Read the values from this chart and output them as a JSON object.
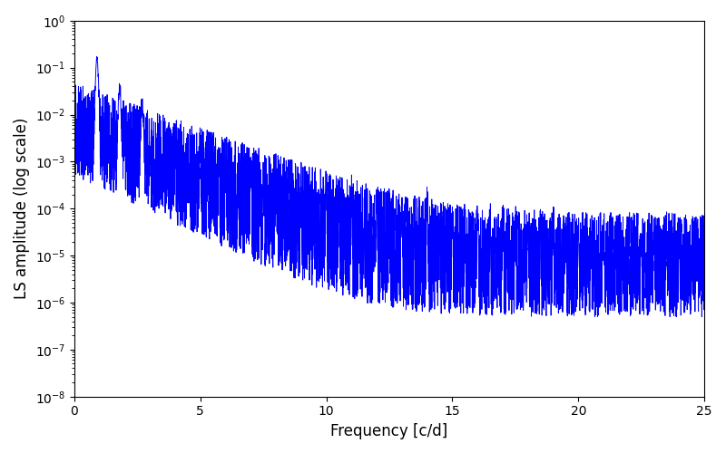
{
  "xlabel": "Frequency [c/d]",
  "ylabel": "LS amplitude (log scale)",
  "xlim": [
    0,
    25
  ],
  "ylim": [
    1e-08,
    1.0
  ],
  "line_color": "#0000ff",
  "line_width": 0.7,
  "figsize": [
    8.0,
    5.0
  ],
  "dpi": 100,
  "seed": 42,
  "n_points": 5000,
  "background_color": "#ffffff"
}
